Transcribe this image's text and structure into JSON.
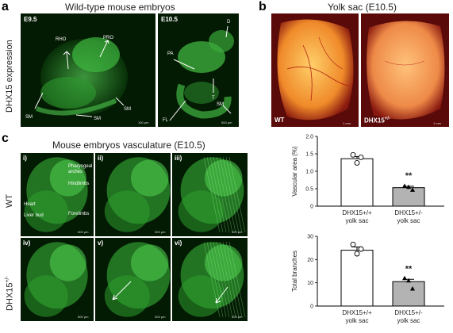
{
  "panel_a": {
    "letter": "a",
    "title": "Wild-type mouse embryos",
    "ylabel": "DHX15 expression",
    "image1": {
      "stage": "E9.5",
      "labels": [
        "RHO",
        "PRO",
        "SM",
        "SM",
        "SM"
      ],
      "scale": "100 μm"
    },
    "image2": {
      "stage": "E10.5",
      "labels": [
        "D",
        "PA",
        "T",
        "SM",
        "FL"
      ],
      "scale": "500 μm"
    }
  },
  "panel_b": {
    "letter": "b",
    "title": "Yolk sac (E10.5)",
    "wt_label": "WT",
    "mut_label": "DHX15",
    "mut_sup": "+/-",
    "scale": "1 mm"
  },
  "panel_c": {
    "letter": "c",
    "title": "Mouse embryos vasculature (E10.5)",
    "row_wt": "WT",
    "row_mut": "DHX15",
    "row_mut_sup": "+/-",
    "tiles": [
      "i)",
      "ii)",
      "iii)",
      "iv)",
      "v)",
      "vi)"
    ],
    "annotations": [
      "Pharyngeal arches",
      "Hindlimbs",
      "Heart",
      "Liver bud",
      "Forelimbs"
    ],
    "scales": [
      "600 μm",
      "300 μm",
      "300 μm",
      "600 μm",
      "300 μm",
      "300 μm"
    ]
  },
  "chart_data": [
    {
      "type": "bar",
      "ylabel": "Vascular area (%)",
      "ylim": [
        0,
        2
      ],
      "yticks": [
        "0",
        "0.5",
        "1.0",
        "1.5",
        "2.0"
      ],
      "categories": [
        "DHX15+/+ yolk sac",
        "DHX15+/- yolk sac"
      ],
      "cat_labels": [
        [
          "DHX15+/+",
          "yolk sac"
        ],
        [
          "DHX15+/-",
          "yolk sac"
        ]
      ],
      "values": [
        1.36,
        0.53
      ],
      "errors": [
        0.06,
        0.04
      ],
      "points": [
        [
          1.47,
          1.4,
          1.24
        ],
        [
          0.58,
          0.47,
          0.55
        ]
      ],
      "significance": "**",
      "colors": [
        "#ffffff",
        "#b3b3b3"
      ]
    },
    {
      "type": "bar",
      "ylabel": "Total branches",
      "ylim": [
        0,
        30
      ],
      "yticks": [
        "0",
        "10",
        "20",
        "30"
      ],
      "categories": [
        "DHX15+/+ yolk sac",
        "DHX15+/- yolk sac"
      ],
      "cat_labels": [
        [
          "DHX15+/+",
          "yolk sac"
        ],
        [
          "DHX15+/-",
          "yolk sac"
        ]
      ],
      "values": [
        24,
        10.5
      ],
      "errors": [
        1.4,
        1.0
      ],
      "points": [
        [
          26.5,
          24.5,
          22.5
        ],
        [
          12.0,
          7.5,
          11.0
        ]
      ],
      "significance": "**",
      "colors": [
        "#ffffff",
        "#b3b3b3"
      ]
    }
  ]
}
